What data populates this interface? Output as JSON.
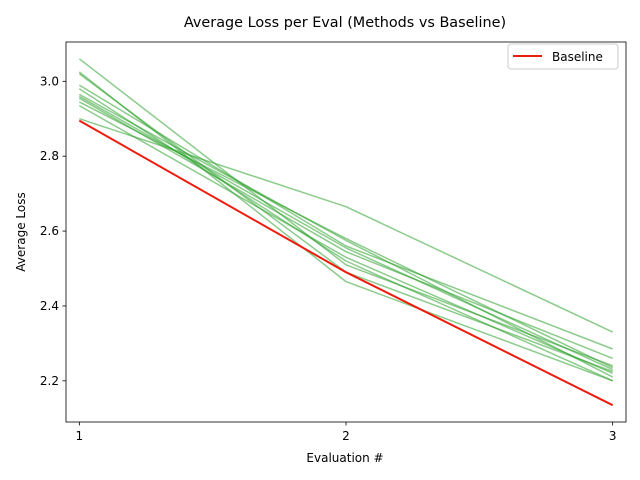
{
  "chart_data": {
    "type": "line",
    "title": "Average Loss per Eval (Methods vs Baseline)",
    "xlabel": "Evaluation #",
    "ylabel": "Average Loss",
    "x": [
      1,
      2,
      3
    ],
    "x_ticks": [
      "1",
      "2",
      "3"
    ],
    "y_ticks": [
      "2.2",
      "2.4",
      "2.6",
      "2.8",
      "3.0"
    ],
    "xlim": [
      0.95,
      3.05
    ],
    "ylim": [
      2.09,
      3.105
    ],
    "grid": false,
    "legend_position": "top-right",
    "colors": {
      "methods": "#2ca02c",
      "baseline": "#ee1c0e"
    },
    "series": [
      {
        "name": "Baseline",
        "values": [
          2.895,
          2.49,
          2.135
        ]
      },
      {
        "values": [
          3.06,
          2.51,
          2.24
        ]
      },
      {
        "values": [
          2.99,
          2.56,
          2.285
        ]
      },
      {
        "values": [
          2.98,
          2.52,
          2.2
        ]
      },
      {
        "values": [
          2.965,
          2.575,
          2.21
        ]
      },
      {
        "values": [
          2.955,
          2.545,
          2.26
        ]
      },
      {
        "values": [
          2.945,
          2.58,
          2.235
        ]
      },
      {
        "values": [
          2.935,
          2.53,
          2.22
        ]
      },
      {
        "values": [
          2.9,
          2.665,
          2.33
        ]
      },
      {
        "values": [
          3.025,
          2.465,
          2.2
        ]
      },
      {
        "values": [
          3.02,
          2.49,
          2.225
        ]
      },
      {
        "values": [
          2.96,
          2.555,
          2.23
        ]
      }
    ]
  }
}
